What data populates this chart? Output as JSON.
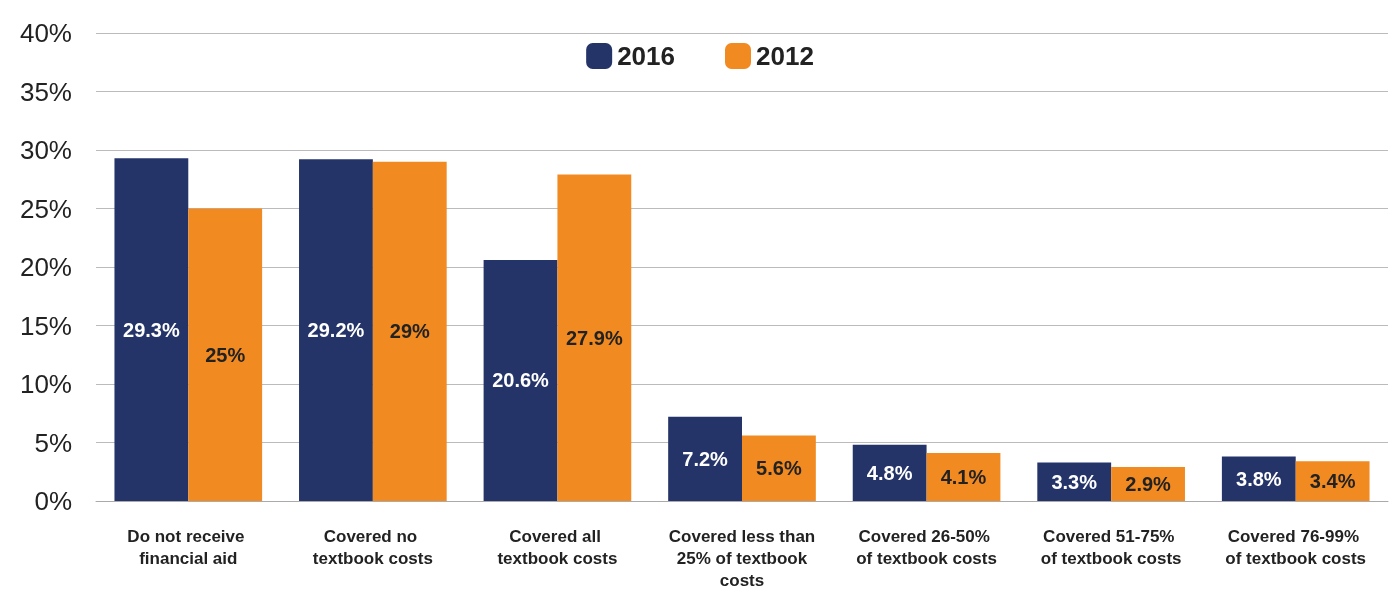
{
  "chart_data": {
    "type": "bar",
    "categories": [
      "Do not receive financial aid",
      "Covered no textbook costs",
      "Covered all textbook costs",
      "Covered less than 25% of textbook costs",
      "Covered 26-50% of textbook costs",
      "Covered 51-75% of textbook costs",
      "Covered 76-99% of textbook costs"
    ],
    "series": [
      {
        "name": "2016",
        "color": "#253468",
        "values": [
          29.3,
          29.2,
          20.6,
          7.2,
          4.8,
          3.3,
          3.8
        ],
        "value_labels": [
          "29.3%",
          "29.2%",
          "20.6%",
          "7.2%",
          "4.8%",
          "3.3%",
          "3.8%"
        ]
      },
      {
        "name": "2012",
        "color": "#f28a22",
        "values": [
          25,
          29,
          27.9,
          5.6,
          4.1,
          2.9,
          3.4
        ],
        "value_labels": [
          "25%",
          "29%",
          "27.9%",
          "5.6%",
          "4.1%",
          "2.9%",
          "3.4%"
        ]
      }
    ],
    "ylim": [
      0,
      40
    ],
    "yticks": [
      {
        "value": 0,
        "label": "0%"
      },
      {
        "value": 5,
        "label": "5%"
      },
      {
        "value": 10,
        "label": "10%"
      },
      {
        "value": 15,
        "label": "15%"
      },
      {
        "value": 20,
        "label": "20%"
      },
      {
        "value": 25,
        "label": "25%"
      },
      {
        "value": 30,
        "label": "30%"
      },
      {
        "value": 35,
        "label": "35%"
      },
      {
        "value": 40,
        "label": "40%"
      }
    ],
    "grid": "y",
    "legend": "top"
  }
}
